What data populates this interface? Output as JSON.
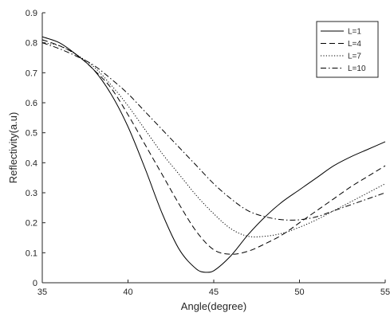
{
  "chart_data": {
    "type": "line",
    "title": "",
    "xlabel": "Angle(degree)",
    "ylabel": "Reflectivity(a.u)",
    "xlim": [
      35,
      55
    ],
    "ylim": [
      0,
      0.9
    ],
    "xticks": [
      35,
      40,
      45,
      50,
      55
    ],
    "yticks": [
      0,
      0.1,
      0.2,
      0.3,
      0.4,
      0.5,
      0.6,
      0.7,
      0.8,
      0.9
    ],
    "xtick_labels": [
      "35",
      "40",
      "45",
      "50",
      "55"
    ],
    "ytick_labels": [
      "0",
      "0.1",
      "0.2",
      "0.3",
      "0.4",
      "0.5",
      "0.6",
      "0.7",
      "0.8",
      "0.9"
    ],
    "grid": false,
    "legend_position": "top-right",
    "series": [
      {
        "name": "L=1",
        "style": "solid",
        "color": "#000000",
        "x": [
          35,
          36,
          37,
          38,
          39,
          40,
          41,
          42,
          43,
          44,
          44.5,
          45,
          46,
          47,
          48,
          49,
          50,
          51,
          52,
          53,
          54,
          55
        ],
        "y": [
          0.82,
          0.8,
          0.76,
          0.71,
          0.63,
          0.52,
          0.38,
          0.23,
          0.11,
          0.045,
          0.035,
          0.04,
          0.09,
          0.16,
          0.22,
          0.27,
          0.31,
          0.35,
          0.39,
          0.42,
          0.445,
          0.47
        ]
      },
      {
        "name": "L=4",
        "style": "dashed",
        "color": "#000000",
        "x": [
          35,
          36,
          37,
          38,
          39,
          40,
          41,
          42,
          43,
          44,
          45,
          46,
          47,
          48,
          49,
          50,
          51,
          52,
          53,
          54,
          55
        ],
        "y": [
          0.81,
          0.79,
          0.76,
          0.71,
          0.65,
          0.56,
          0.46,
          0.36,
          0.26,
          0.17,
          0.11,
          0.095,
          0.105,
          0.13,
          0.16,
          0.2,
          0.24,
          0.28,
          0.32,
          0.355,
          0.39
        ]
      },
      {
        "name": "L=7",
        "style": "dotted",
        "color": "#000000",
        "x": [
          35,
          36,
          37,
          38,
          39,
          40,
          41,
          42,
          43,
          44,
          45,
          46,
          47,
          48,
          49,
          50,
          51,
          52,
          53,
          54,
          55
        ],
        "y": [
          0.8,
          0.79,
          0.76,
          0.72,
          0.66,
          0.59,
          0.51,
          0.43,
          0.36,
          0.29,
          0.23,
          0.18,
          0.155,
          0.155,
          0.165,
          0.185,
          0.21,
          0.24,
          0.27,
          0.3,
          0.33
        ]
      },
      {
        "name": "L=10",
        "style": "dashdot",
        "color": "#000000",
        "x": [
          35,
          36,
          37,
          38,
          39,
          40,
          41,
          42,
          43,
          44,
          45,
          46,
          47,
          48,
          49,
          50,
          51,
          52,
          53,
          54,
          55
        ],
        "y": [
          0.8,
          0.78,
          0.755,
          0.725,
          0.68,
          0.63,
          0.57,
          0.51,
          0.45,
          0.39,
          0.33,
          0.28,
          0.24,
          0.22,
          0.21,
          0.21,
          0.22,
          0.24,
          0.26,
          0.28,
          0.3
        ]
      }
    ]
  }
}
